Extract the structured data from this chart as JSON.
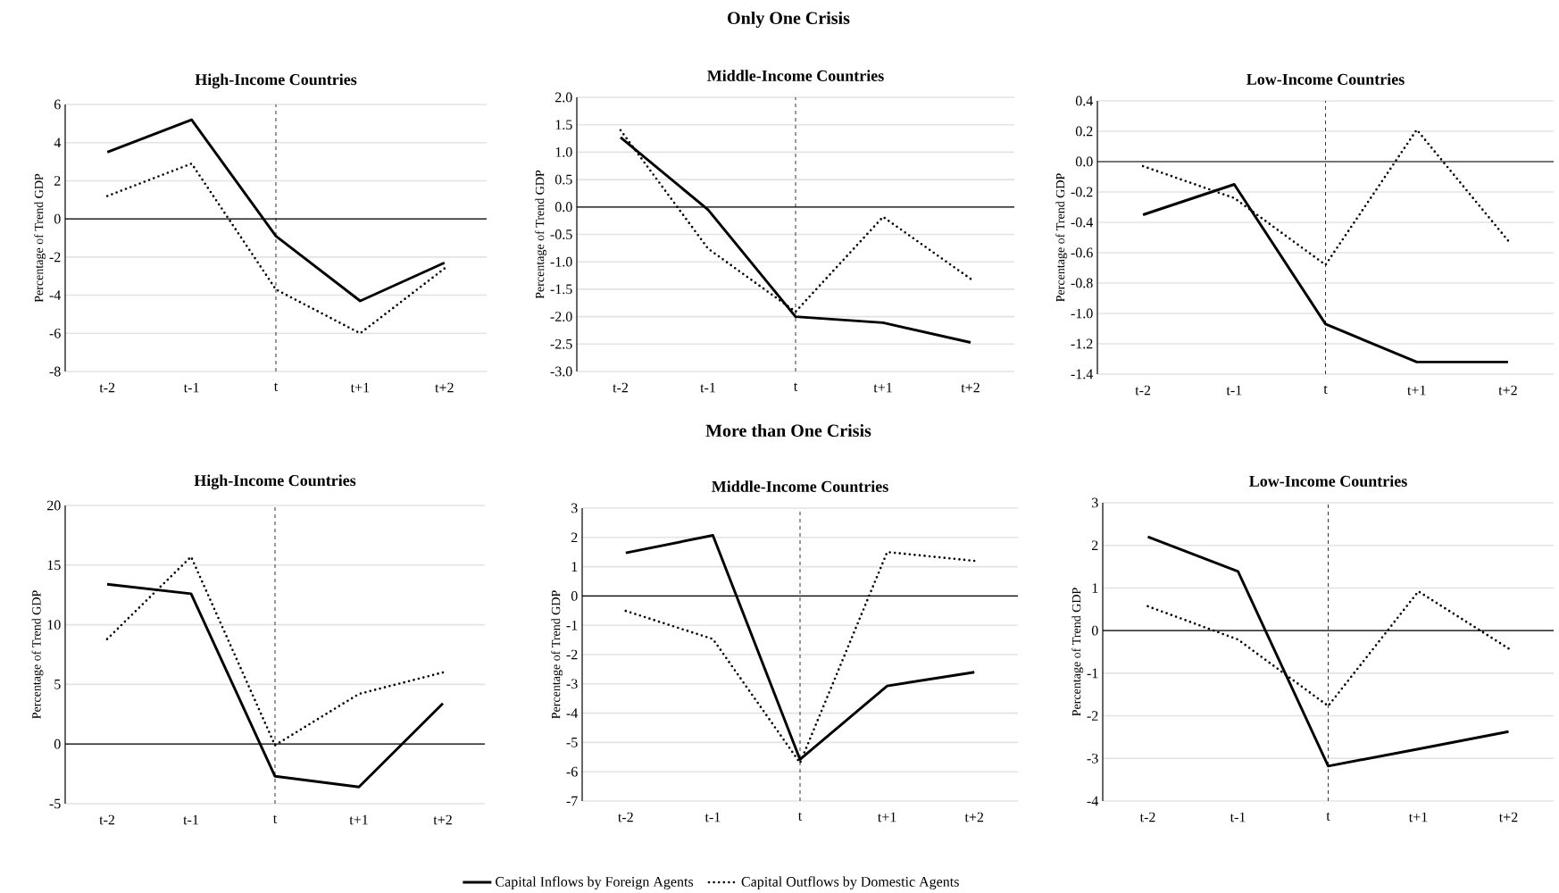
{
  "chart_data": [
    {
      "type": "line",
      "title": "High-Income Countries",
      "ylabel": "Percentage of Trend GDP",
      "annotations": [
        "Only One Crisis"
      ],
      "categories": [
        "t-2",
        "t-1",
        "t",
        "t+1",
        "t+2"
      ],
      "ylim": [
        -8,
        6
      ],
      "yticks": [
        -8,
        -6,
        -4,
        -2,
        0,
        2,
        4,
        6
      ],
      "grid": "y",
      "series": [
        {
          "color": "#000000",
          "line_style": "solid",
          "values": [
            3.5,
            5.2,
            -0.9,
            -4.3,
            -2.3
          ]
        },
        {
          "color": "#000000",
          "line_style": "dotted",
          "values": [
            1.2,
            2.9,
            -3.7,
            -6.0,
            -2.6
          ]
        }
      ],
      "ref_lines": [
        {
          "axis": "x",
          "value": "t",
          "line_style": "dashed"
        }
      ]
    },
    {
      "type": "line",
      "title": "Middle-Income Countries",
      "ylabel": "Percentage of Trend GDP",
      "categories": [
        "t-2",
        "t-1",
        "t",
        "t+1",
        "t+2"
      ],
      "ylim": [
        -3,
        2
      ],
      "yticks": [
        {
          "value": -3,
          "label": "-3.0"
        },
        {
          "value": -2.5,
          "label": "-2.5"
        },
        {
          "value": -2,
          "label": "-2.0"
        },
        {
          "value": -1.5,
          "label": "-1.5"
        },
        {
          "value": -1,
          "label": "-1.0"
        },
        {
          "value": -0.5,
          "label": "-0.5"
        },
        {
          "value": 0,
          "label": "0.0"
        },
        {
          "value": 0.5,
          "label": "0.5"
        },
        {
          "value": 1,
          "label": "1.0"
        },
        {
          "value": 1.5,
          "label": "1.5"
        },
        {
          "value": 2,
          "label": "2.0"
        }
      ],
      "grid": "y",
      "series": [
        {
          "color": "#000000",
          "line_style": "solid",
          "values": [
            1.27,
            -0.05,
            -2.0,
            -2.11,
            -2.47
          ]
        },
        {
          "color": "#000000",
          "line_style": "dotted",
          "values": [
            1.4,
            -0.76,
            -1.91,
            -0.18,
            -1.31
          ]
        }
      ],
      "ref_lines": [
        {
          "axis": "x",
          "value": "t",
          "line_style": "dashed"
        }
      ]
    },
    {
      "type": "line",
      "title": "Low-Income Countries",
      "ylabel": "Percentage of Trend GDP",
      "categories": [
        "t-2",
        "t-1",
        "t",
        "t+1",
        "t+2"
      ],
      "ylim": [
        -1.4,
        0.4
      ],
      "yticks": [
        {
          "value": -1.4,
          "label": "-1.4"
        },
        {
          "value": -1.2,
          "label": "-1.2"
        },
        {
          "value": -1,
          "label": "-1.0"
        },
        {
          "value": -0.8,
          "label": "-0.8"
        },
        {
          "value": -0.6,
          "label": "-0.6"
        },
        {
          "value": -0.4,
          "label": "-0.4"
        },
        {
          "value": -0.2,
          "label": "-0.2"
        },
        {
          "value": 0,
          "label": "0.0"
        },
        {
          "value": 0.2,
          "label": "0.2"
        },
        {
          "value": 0.4,
          "label": "0.4"
        }
      ],
      "grid": "y",
      "series": [
        {
          "color": "#000000",
          "line_style": "solid",
          "values": [
            -0.35,
            -0.15,
            -1.07,
            -1.32,
            -1.32
          ]
        },
        {
          "color": "#000000",
          "line_style": "dotted",
          "values": [
            -0.03,
            -0.24,
            -0.68,
            0.21,
            -0.52
          ]
        }
      ],
      "ref_lines": [
        {
          "axis": "x",
          "value": "t",
          "line_style": "dashed"
        }
      ]
    },
    {
      "type": "line",
      "title": "High-Income Countries",
      "ylabel": "Percentage of Trend GDP",
      "annotations": [
        "More than One Crisis"
      ],
      "categories": [
        "t-2",
        "t-1",
        "t",
        "t+1",
        "t+2"
      ],
      "ylim": [
        -5,
        20
      ],
      "yticks": [
        -5,
        0,
        5,
        10,
        15,
        20
      ],
      "grid": "y",
      "series": [
        {
          "color": "#000000",
          "line_style": "solid",
          "values": [
            13.4,
            12.6,
            -2.7,
            -3.6,
            3.4
          ]
        },
        {
          "color": "#000000",
          "line_style": "dotted",
          "values": [
            8.8,
            15.7,
            -0.1,
            4.2,
            6.0
          ]
        }
      ],
      "ref_lines": [
        {
          "axis": "x",
          "value": "t",
          "line_style": "dashed"
        }
      ]
    },
    {
      "type": "line",
      "title": "Middle-Income Countries",
      "ylabel": "Percentage of Trend GDP",
      "categories": [
        "t-2",
        "t-1",
        "t",
        "t+1",
        "t+2"
      ],
      "ylim": [
        -7,
        3
      ],
      "yticks": [
        -7,
        -6,
        -5,
        -4,
        -3,
        -2,
        -1,
        0,
        1,
        2,
        3
      ],
      "grid": "y",
      "legend": "bottom",
      "series": [
        {
          "name": "Capital Inflows by Foreign Agents",
          "color": "#000000",
          "line_style": "solid",
          "values": [
            1.47,
            2.07,
            -5.58,
            -3.07,
            -2.6
          ]
        },
        {
          "name": "Capital Outflows by Domestic Agents",
          "color": "#000000",
          "line_style": "dotted",
          "values": [
            -0.51,
            -1.47,
            -5.7,
            1.5,
            1.2
          ]
        }
      ],
      "ref_lines": [
        {
          "axis": "x",
          "value": "t",
          "line_style": "dashed"
        }
      ]
    },
    {
      "type": "line",
      "title": "Low-Income Countries",
      "ylabel": "Percentage of Trend GDP",
      "categories": [
        "t-2",
        "t-1",
        "t",
        "t+1",
        "t+2"
      ],
      "ylim": [
        -4,
        3
      ],
      "yticks": [
        -4,
        -3,
        -2,
        -1,
        0,
        1,
        2,
        3
      ],
      "grid": "y",
      "series": [
        {
          "color": "#000000",
          "line_style": "solid",
          "values": [
            2.2,
            1.39,
            -3.18,
            -2.78,
            -2.37
          ]
        },
        {
          "color": "#000000",
          "line_style": "dotted",
          "values": [
            0.57,
            -0.21,
            -1.77,
            0.92,
            -0.42
          ]
        }
      ],
      "ref_lines": [
        {
          "axis": "x",
          "value": "t",
          "line_style": "dashed"
        }
      ]
    }
  ]
}
